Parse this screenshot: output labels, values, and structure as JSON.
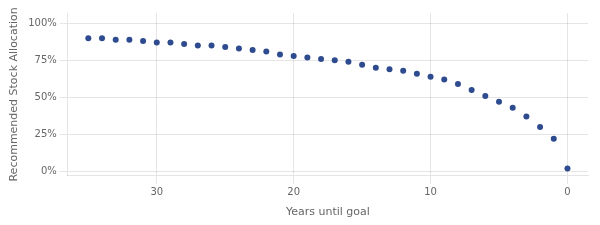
{
  "chart_data": {
    "type": "scatter",
    "xlabel": "Years until goal",
    "ylabel": "Recommended Stock Allocation",
    "x": [
      35,
      34,
      33,
      32,
      31,
      30,
      29,
      28,
      27,
      26,
      25,
      24,
      23,
      22,
      21,
      20,
      19,
      18,
      17,
      16,
      15,
      14,
      13,
      12,
      11,
      10,
      9,
      8,
      7,
      6,
      5,
      4,
      3,
      2,
      1,
      0
    ],
    "values": [
      90,
      90,
      89,
      89,
      88,
      87,
      87,
      86,
      85,
      85,
      84,
      83,
      82,
      81,
      79,
      78,
      77,
      76,
      75,
      74,
      72,
      70,
      69,
      68,
      66,
      64,
      62,
      59,
      55,
      51,
      47,
      43,
      37,
      30,
      22,
      2
    ],
    "color": "#2d4b8e",
    "xlim": [
      36.5,
      -1.5
    ],
    "ylim": [
      -3,
      107
    ],
    "xticks": [
      30,
      20,
      10,
      0
    ],
    "yticks": [
      {
        "value": 0,
        "label": "0%"
      },
      {
        "value": 25,
        "label": "25%"
      },
      {
        "value": 50,
        "label": "50%"
      },
      {
        "value": 75,
        "label": "75%"
      },
      {
        "value": 100,
        "label": "100%"
      }
    ],
    "grid": true
  }
}
